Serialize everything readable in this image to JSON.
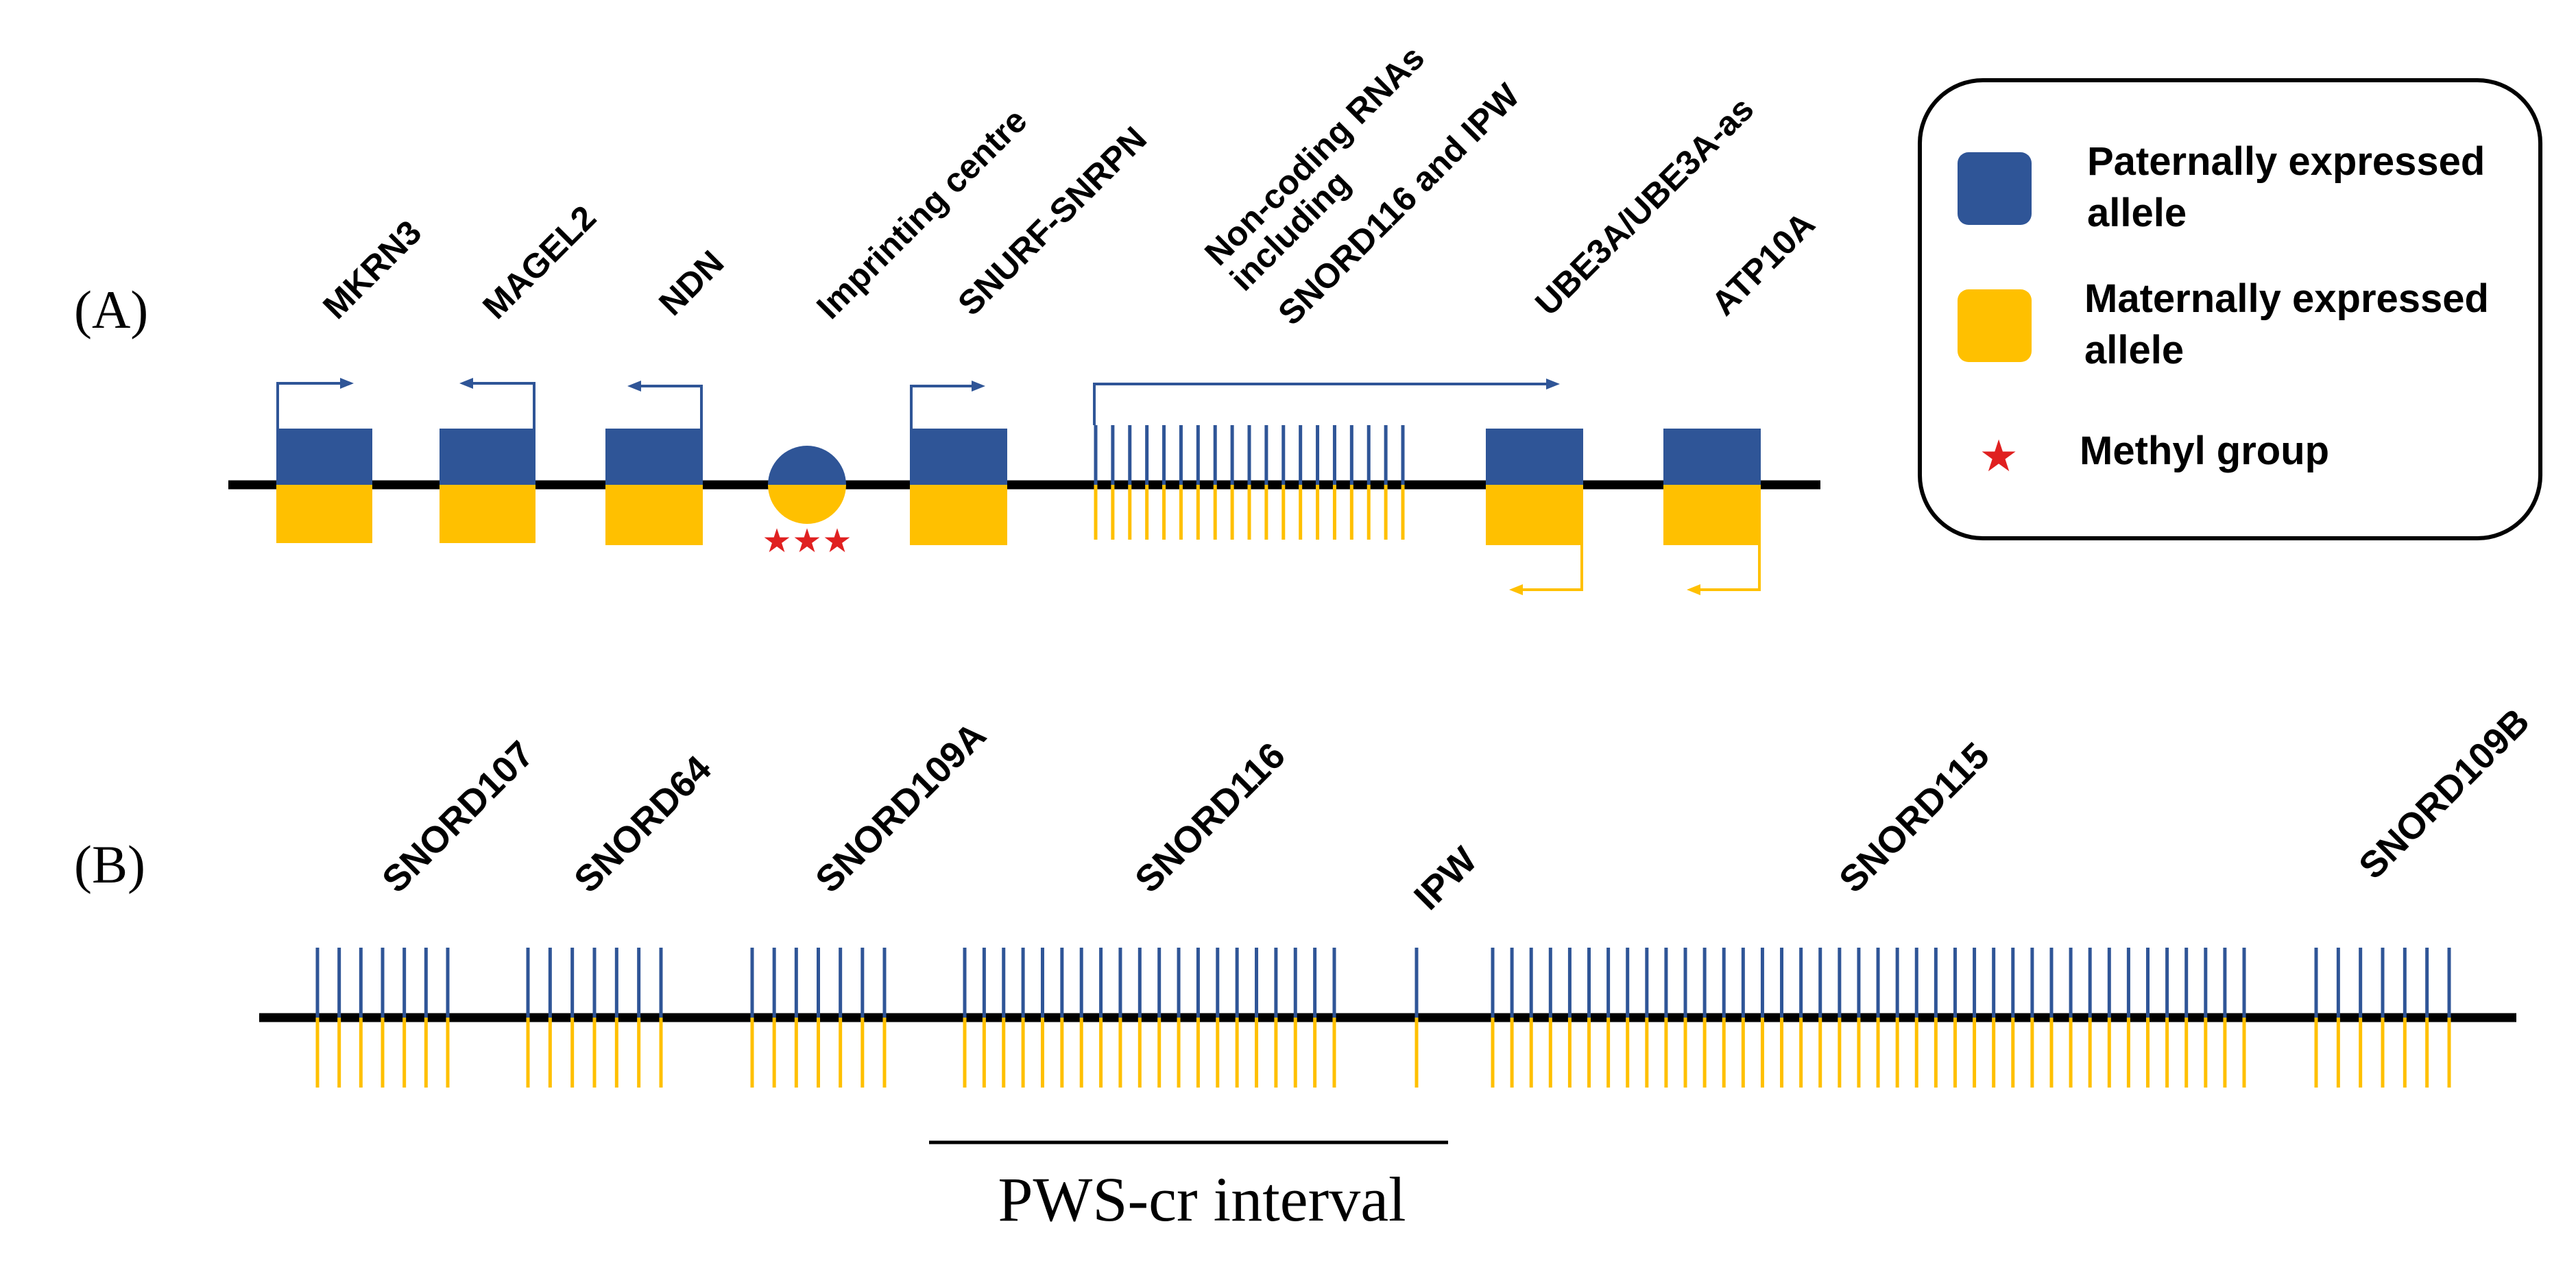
{
  "colors": {
    "paternal": "#2f5597",
    "maternal": "#ffc000",
    "methyl": "#e02020",
    "line": "#000000"
  },
  "panelA": {
    "label": "(A)",
    "genes": [
      {
        "id": "mkrn3",
        "label": "MKRN3",
        "shape": "box",
        "arrow": "paternal-right"
      },
      {
        "id": "magel2",
        "label": "MAGEL2",
        "shape": "box",
        "arrow": "paternal-left"
      },
      {
        "id": "ndn",
        "label": "NDN",
        "shape": "box",
        "arrow": "paternal-left"
      },
      {
        "id": "imprinting-centre",
        "label": "Imprinting centre",
        "shape": "circle",
        "methyl_marks": 3
      },
      {
        "id": "snurf-snrpn",
        "label": "SNURF-SNRPN",
        "shape": "box",
        "arrow": "paternal-right"
      },
      {
        "id": "noncoding-rnas",
        "label_lines": [
          "Non-coding RNAs",
          "including",
          "SNORD116 and IPW"
        ],
        "shape": "lines",
        "count": 19,
        "arrow": "paternal-right"
      },
      {
        "id": "ube3a",
        "label": "UBE3A/UBE3A-as",
        "shape": "box",
        "arrow": "maternal-left"
      },
      {
        "id": "atp10a",
        "label": "ATP10A",
        "shape": "box",
        "arrow": "maternal-left"
      }
    ]
  },
  "panelB": {
    "label": "(B)",
    "clusters": [
      {
        "id": "snord107",
        "label": "SNORD107",
        "count": 7
      },
      {
        "id": "snord64",
        "label": "SNORD64",
        "count": 7
      },
      {
        "id": "snord109a",
        "label": "SNORD109A",
        "count": 7
      },
      {
        "id": "snord116",
        "label": "SNORD116",
        "count": 20
      },
      {
        "id": "ipw",
        "label": "IPW",
        "count": 1
      },
      {
        "id": "snord115",
        "label": "SNORD115",
        "count": 40
      },
      {
        "id": "snord109b",
        "label": "SNORD109B",
        "count": 7
      }
    ],
    "interval_label": "PWS-cr interval"
  },
  "legend": {
    "items": [
      {
        "id": "paternal",
        "lines": [
          "Paternally expressed",
          "allele"
        ]
      },
      {
        "id": "maternal",
        "lines": [
          "Maternally expressed",
          "allele"
        ]
      },
      {
        "id": "methyl",
        "lines": [
          "Methyl group"
        ]
      }
    ]
  }
}
